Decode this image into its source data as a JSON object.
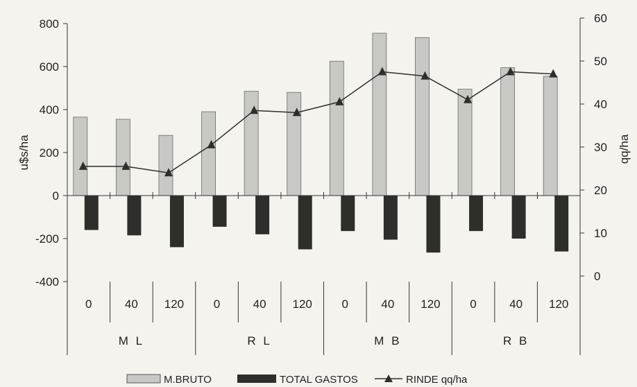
{
  "chart_data": {
    "type": "bar",
    "categories": [
      "0",
      "40",
      "120",
      "0",
      "40",
      "120",
      "0",
      "40",
      "120",
      "0",
      "40",
      "120"
    ],
    "groups": [
      {
        "label": "ML",
        "display": "M L",
        "span": 3
      },
      {
        "label": "RL",
        "display": "R L",
        "span": 3
      },
      {
        "label": "MB",
        "display": "M B",
        "span": 3
      },
      {
        "label": "RB",
        "display": "R B",
        "span": 3
      }
    ],
    "series": [
      {
        "name": "M.BRUTO",
        "type": "bar",
        "axis": "left",
        "color": "#c8c8c4",
        "values": [
          365,
          355,
          280,
          390,
          485,
          480,
          625,
          755,
          735,
          495,
          595,
          555
        ]
      },
      {
        "name": "TOTAL GASTOS",
        "type": "bar",
        "axis": "left",
        "color": "#2e2e2b",
        "values": [
          -160,
          -185,
          -240,
          -145,
          -180,
          -250,
          -165,
          -205,
          -265,
          -165,
          -200,
          -260
        ]
      },
      {
        "name": "RINDE qq/ha",
        "type": "line",
        "axis": "right",
        "color": "#2e2e2b",
        "marker": "triangle",
        "values": [
          25.5,
          25.5,
          24,
          30.5,
          38.5,
          38,
          40.5,
          47.5,
          46.5,
          41,
          47.5,
          47
        ]
      }
    ],
    "ylabel": "u$s/ha",
    "y2label": "qq/ha",
    "ylim": [
      -400,
      800
    ],
    "y_ticks": [
      800,
      600,
      400,
      200,
      0,
      -200,
      -400
    ],
    "y2lim": [
      0,
      60
    ],
    "y2_ticks": [
      60,
      50,
      40,
      30,
      20,
      10,
      0
    ],
    "grid": false,
    "legend_position": "bottom",
    "legend_labels": [
      "M.BRUTO",
      "TOTAL GASTOS",
      "RINDE qq/ha"
    ]
  }
}
